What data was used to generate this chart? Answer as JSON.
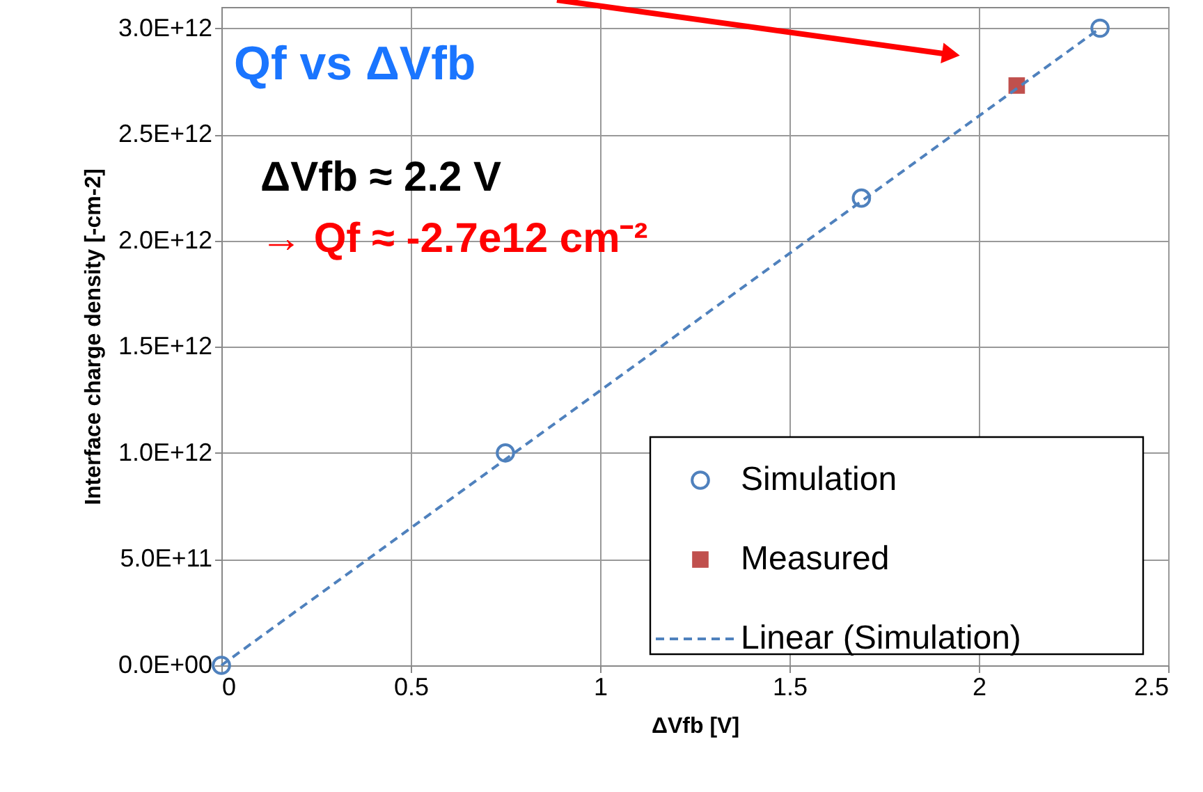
{
  "chart_data": {
    "type": "scatter",
    "xlabel": "ΔVfb [V]",
    "ylabel": "Interface charge density [-cm-2]",
    "xlim": [
      0,
      2.5
    ],
    "xticks": [
      0,
      0.5,
      1,
      1.5,
      2,
      2.5
    ],
    "ylim": [
      0,
      3100000000000.0
    ],
    "yticks": [
      {
        "value": 0,
        "label": "0.0E+00"
      },
      {
        "value": 500000000000.0,
        "label": "5.0E+11"
      },
      {
        "value": 1000000000000.0,
        "label": "1.0E+12"
      },
      {
        "value": 1500000000000.0,
        "label": "1.5E+12"
      },
      {
        "value": 2000000000000.0,
        "label": "2.0E+12"
      },
      {
        "value": 2500000000000.0,
        "label": "2.5E+12"
      },
      {
        "value": 3000000000000.0,
        "label": "3.0E+12"
      }
    ],
    "grid": true,
    "legend": "bottom right",
    "annotations": [
      "Qf vs ΔVfb",
      "ΔVfb ≈ 2.2 V",
      "→ Qf ≈ -2.7e12 cm⁻²"
    ],
    "series": [
      {
        "name": "Simulation",
        "marker": "circle",
        "color": "#4f81bd",
        "x": [
          0,
          0.75,
          1.69,
          2.32
        ],
        "values": [
          0,
          1000000000000.0,
          2200000000000.0,
          3000000000000.0
        ]
      },
      {
        "name": "Measured",
        "marker": "square",
        "color": "#c0504d",
        "x": [
          2.1
        ],
        "values": [
          2730000000000.0
        ]
      },
      {
        "name": "Linear (Simulation)",
        "type": "line",
        "line_style": "dashed",
        "marker": "none",
        "color": "#4f81bd",
        "x": [
          0,
          2.32
        ],
        "values": [
          0,
          3000000000000.0
        ]
      }
    ]
  }
}
